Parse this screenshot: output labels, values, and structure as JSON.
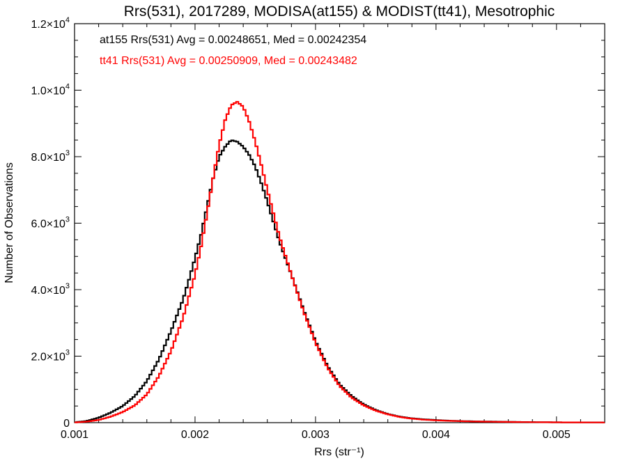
{
  "chart_data": {
    "type": "line",
    "title": "Rrs(531), 2017289, MODISA(at155) & MODIST(tt41), Mesotrophic",
    "xlabel": "Rrs (str⁻¹)",
    "ylabel": "Number of Observations",
    "xlim": [
      0.001,
      0.0054
    ],
    "ylim": [
      0,
      12000
    ],
    "x_ticks": [
      0.001,
      0.002,
      0.003,
      0.004,
      0.005
    ],
    "x_tick_labels": [
      "0.001",
      "0.002",
      "0.003",
      "0.004",
      "0.005"
    ],
    "y_ticks": [
      0,
      2000,
      4000,
      6000,
      8000,
      10000,
      12000
    ],
    "y_tick_labels": [
      {
        "mant": "0",
        "exp": ""
      },
      {
        "mant": "2.0×10",
        "exp": "3"
      },
      {
        "mant": "4.0×10",
        "exp": "3"
      },
      {
        "mant": "6.0×10",
        "exp": "3"
      },
      {
        "mant": "8.0×10",
        "exp": "3"
      },
      {
        "mant": "1.0×10",
        "exp": "4"
      },
      {
        "mant": "1.2×10",
        "exp": "4"
      }
    ],
    "grid": false,
    "step": true,
    "annotations": [
      "at155 Rrs(531) Avg = 0.00248651, Med = 0.00242354",
      "tt41 Rrs(531) Avg = 0.00250909, Med = 0.00243482"
    ],
    "series": [
      {
        "color": "#000000",
        "x": [
          0.001,
          0.0011,
          0.0012,
          0.0013,
          0.0014,
          0.0015,
          0.0016,
          0.0017,
          0.0018,
          0.0019,
          0.00195,
          0.002,
          0.00205,
          0.0021,
          0.00215,
          0.0022,
          0.00225,
          0.0023,
          0.00235,
          0.0024,
          0.00245,
          0.0025,
          0.00255,
          0.0026,
          0.00265,
          0.0027,
          0.0028,
          0.0029,
          0.003,
          0.0031,
          0.0032,
          0.0033,
          0.0034,
          0.0035,
          0.0036,
          0.0037,
          0.0038,
          0.0039,
          0.004,
          0.0041,
          0.0042,
          0.0043,
          0.0045,
          0.0047,
          0.005,
          0.0054
        ],
        "y": [
          10,
          50,
          150,
          300,
          500,
          800,
          1250,
          1900,
          2750,
          3700,
          4300,
          4950,
          5650,
          6500,
          7350,
          8000,
          8300,
          8500,
          8450,
          8300,
          8050,
          7700,
          7200,
          6650,
          6050,
          5450,
          4450,
          3400,
          2450,
          1700,
          1150,
          800,
          550,
          380,
          260,
          180,
          130,
          100,
          80,
          60,
          50,
          40,
          30,
          20,
          10,
          5
        ]
      },
      {
        "color": "#ff0000",
        "x": [
          0.001,
          0.0011,
          0.0012,
          0.0013,
          0.0014,
          0.0015,
          0.0016,
          0.0017,
          0.0018,
          0.0019,
          0.002,
          0.00205,
          0.0021,
          0.00215,
          0.0022,
          0.00225,
          0.0023,
          0.00235,
          0.0024,
          0.00245,
          0.0025,
          0.00255,
          0.0026,
          0.00265,
          0.0027,
          0.0028,
          0.0029,
          0.003,
          0.0031,
          0.0032,
          0.0033,
          0.0034,
          0.0035,
          0.0036,
          0.0037,
          0.0038,
          0.0039,
          0.004,
          0.0041,
          0.0042,
          0.0043,
          0.0045,
          0.0047,
          0.005,
          0.0054
        ],
        "y": [
          5,
          30,
          80,
          180,
          320,
          520,
          850,
          1400,
          2150,
          3150,
          4450,
          5300,
          6300,
          7350,
          8350,
          9100,
          9550,
          9650,
          9500,
          9050,
          8450,
          7750,
          7000,
          6300,
          5600,
          4450,
          3350,
          2400,
          1650,
          1100,
          750,
          520,
          360,
          250,
          170,
          120,
          90,
          70,
          55,
          45,
          35,
          25,
          18,
          10,
          5
        ]
      }
    ]
  },
  "colors": {
    "series_a": "#000000",
    "series_b": "#ff0000",
    "axis": "#000000"
  }
}
